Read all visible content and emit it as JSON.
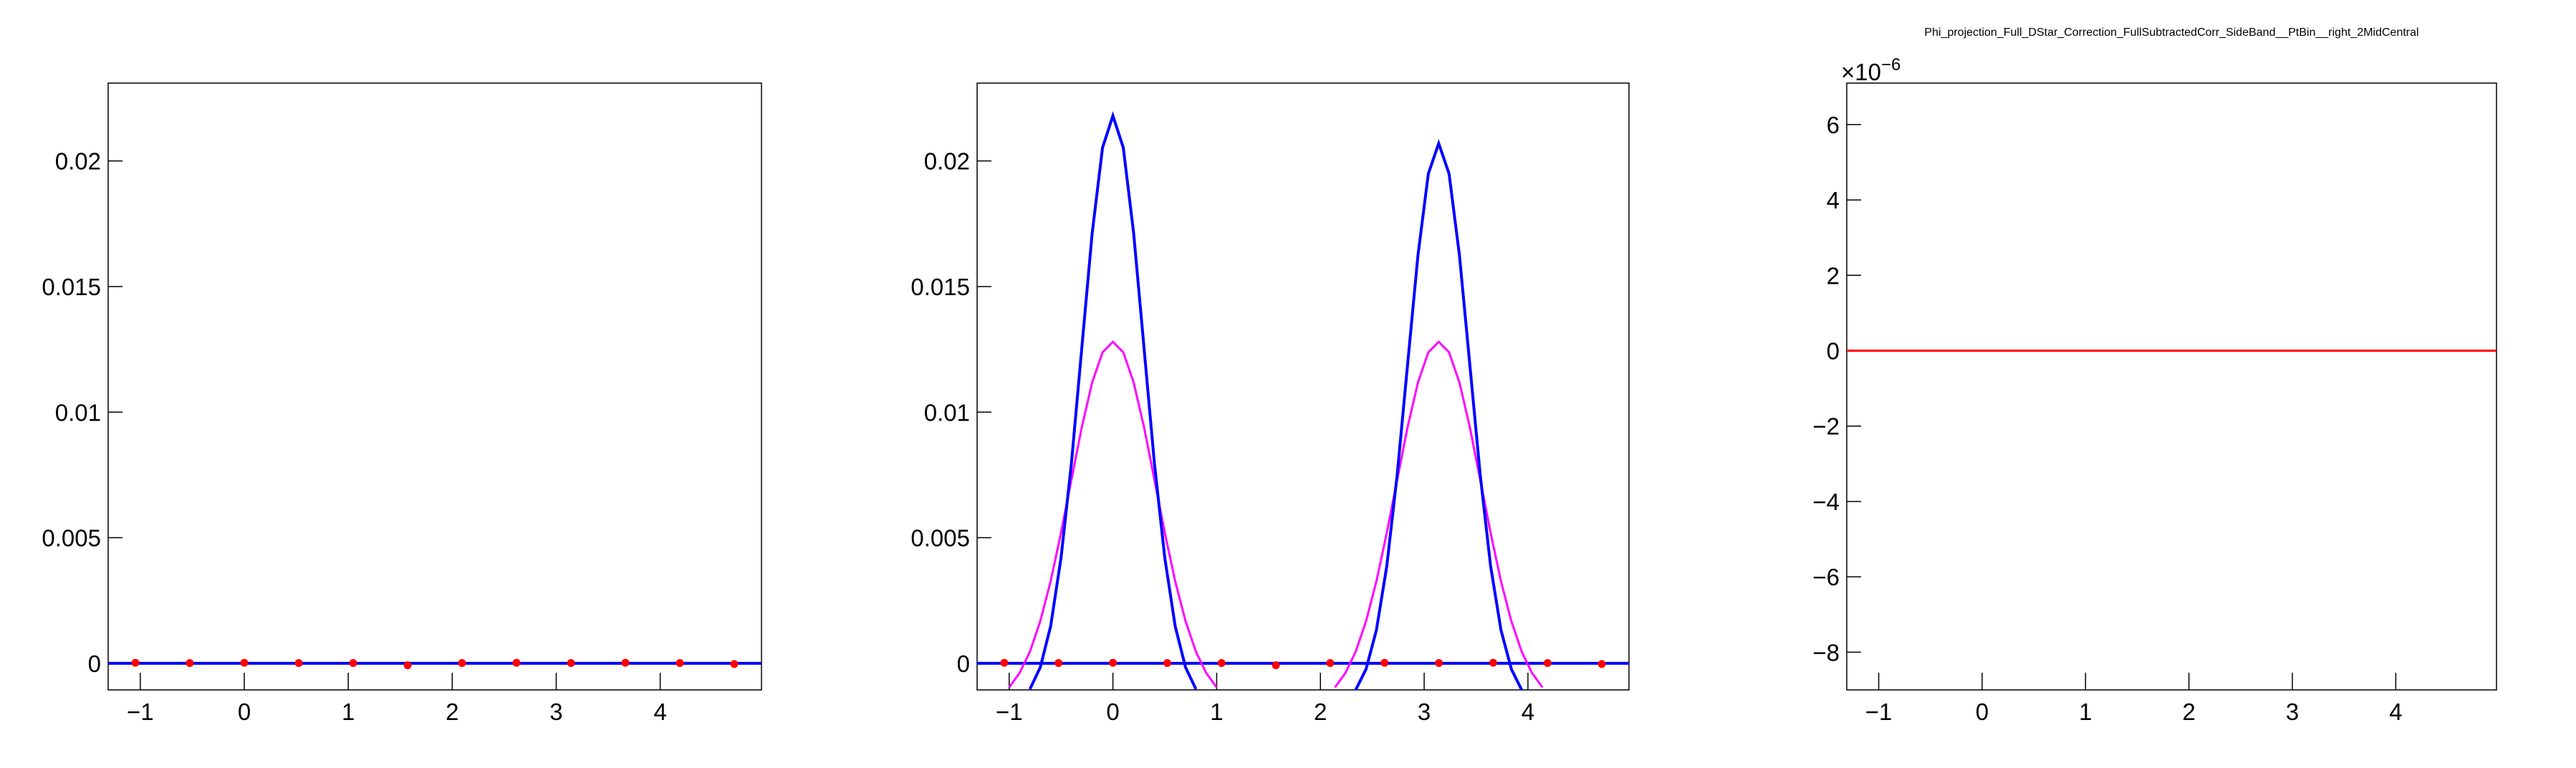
{
  "chart_data": [
    {
      "type": "line",
      "grid": false,
      "xlim": [
        -1.309,
        4.974
      ],
      "ylim": [
        -0.00106,
        0.0231
      ],
      "xticks": [
        {
          "value": -1,
          "label": "−1"
        },
        0,
        1,
        2,
        3,
        4
      ],
      "yticks": [
        0,
        0.005,
        0.01,
        0.015,
        0.02
      ],
      "series": [
        {
          "color": "#0000ff",
          "mode": "line",
          "x": [
            -1.309,
            4.974
          ],
          "values": [
            0,
            0
          ]
        },
        {
          "color": "#ff0000",
          "mode": "markers",
          "x": [
            -1.047,
            -0.524,
            0,
            0.524,
            1.047,
            1.571,
            2.094,
            2.618,
            3.142,
            3.665,
            4.189,
            4.712
          ],
          "values": [
            2e-05,
            1e-05,
            2e-05,
            1e-05,
            1e-05,
            -8e-05,
            1e-05,
            2e-05,
            1e-05,
            2e-05,
            1e-05,
            -3e-05
          ]
        }
      ]
    },
    {
      "type": "line",
      "grid": false,
      "xlim": [
        -1.309,
        4.974
      ],
      "ylim": [
        -0.00106,
        0.0231
      ],
      "xticks": [
        {
          "value": -1,
          "label": "−1"
        },
        0,
        1,
        2,
        3,
        4
      ],
      "yticks": [
        0,
        0.005,
        0.01,
        0.015,
        0.02
      ],
      "series": [
        {
          "color": "#0000ff",
          "mode": "line",
          "x": [
            -1.309,
            4.974
          ],
          "values": [
            0,
            0
          ]
        },
        {
          "color": "#ff00ff",
          "mode": "line",
          "x": [
            -1.0,
            -0.9,
            -0.8,
            -0.7,
            -0.6,
            -0.5,
            -0.4,
            -0.3,
            -0.2,
            -0.1,
            0,
            0.1,
            0.2,
            0.3,
            0.4,
            0.5,
            0.6,
            0.7,
            0.8,
            0.9,
            1.0
          ],
          "values": [
            -0.00096,
            -0.00039,
            0.00046,
            0.00168,
            0.00327,
            0.0052,
            0.00731,
            0.0094,
            0.01118,
            0.01238,
            0.0128,
            0.01238,
            0.01118,
            0.0094,
            0.00731,
            0.0052,
            0.00327,
            0.00168,
            0.00046,
            -0.00039,
            -0.00096
          ]
        },
        {
          "color": "#ff00ff",
          "mode": "line",
          "x": [
            2.14,
            2.24,
            2.34,
            2.44,
            2.54,
            2.64,
            2.74,
            2.84,
            2.94,
            3.04,
            3.14,
            3.24,
            3.34,
            3.44,
            3.54,
            3.64,
            3.74,
            3.84,
            3.94,
            4.04,
            4.14
          ],
          "values": [
            -0.00096,
            -0.00039,
            0.00046,
            0.00168,
            0.00327,
            0.0052,
            0.00731,
            0.0094,
            0.01118,
            0.01238,
            0.0128,
            0.01238,
            0.01118,
            0.0094,
            0.00731,
            0.0052,
            0.00327,
            0.00168,
            0.00046,
            -0.00039,
            -0.00096
          ]
        },
        {
          "color": "#0000ff",
          "mode": "line",
          "x": [
            -0.8,
            -0.7,
            -0.6,
            -0.5,
            -0.4,
            -0.3,
            -0.2,
            -0.1,
            0,
            0.1,
            0.2,
            0.3,
            0.4,
            0.5,
            0.6,
            0.7,
            0.8
          ],
          "values": [
            -0.00103,
            -0.00016,
            0.00148,
            0.0042,
            0.00796,
            0.01255,
            0.01712,
            0.02053,
            0.0218,
            0.02053,
            0.01712,
            0.01255,
            0.00796,
            0.0042,
            0.00148,
            -0.00016,
            -0.00103
          ]
        },
        {
          "color": "#0000ff",
          "mode": "line",
          "x": [
            2.34,
            2.44,
            2.54,
            2.64,
            2.74,
            2.84,
            2.94,
            3.04,
            3.14,
            3.24,
            3.34,
            3.44,
            3.54,
            3.64,
            3.74,
            3.84,
            3.94
          ],
          "values": [
            -0.00106,
            -0.00023,
            0.00133,
            0.00388,
            0.00751,
            0.01189,
            0.01624,
            0.01949,
            0.0207,
            0.01949,
            0.01624,
            0.01189,
            0.00751,
            0.00388,
            0.00133,
            -0.00023,
            -0.00106
          ]
        },
        {
          "color": "#ff0000",
          "mode": "markers",
          "x": [
            -1.047,
            -0.524,
            0,
            0.524,
            1.047,
            1.571,
            2.094,
            2.618,
            3.142,
            3.665,
            4.189,
            4.712
          ],
          "values": [
            2e-05,
            1e-05,
            2e-05,
            1e-05,
            1e-05,
            -8e-05,
            1e-05,
            2e-05,
            1e-05,
            2e-05,
            1e-05,
            -3e-05
          ]
        }
      ]
    },
    {
      "type": "line",
      "grid": false,
      "title": "Phi_projection_Full_DStar_Correction_FullSubtractedCorr_SideBand__PtBin__right_2MidCentral",
      "axis_multiplier": {
        "base": "×10",
        "exponent": "−6"
      },
      "xlim": [
        -1.309,
        4.974
      ],
      "ylim": [
        -9.0,
        7.1
      ],
      "xticks": [
        {
          "value": -1,
          "label": "−1"
        },
        0,
        1,
        2,
        3,
        4
      ],
      "yticks": [
        {
          "value": -8,
          "label": "−8"
        },
        {
          "value": -6,
          "label": "−6"
        },
        {
          "value": -4,
          "label": "−4"
        },
        {
          "value": -2,
          "label": "−2"
        },
        0,
        2,
        4,
        6
      ],
      "series": [
        {
          "color": "#ff0000",
          "mode": "line",
          "x": [
            -1.309,
            4.974
          ],
          "values": [
            0,
            0
          ]
        }
      ]
    }
  ]
}
